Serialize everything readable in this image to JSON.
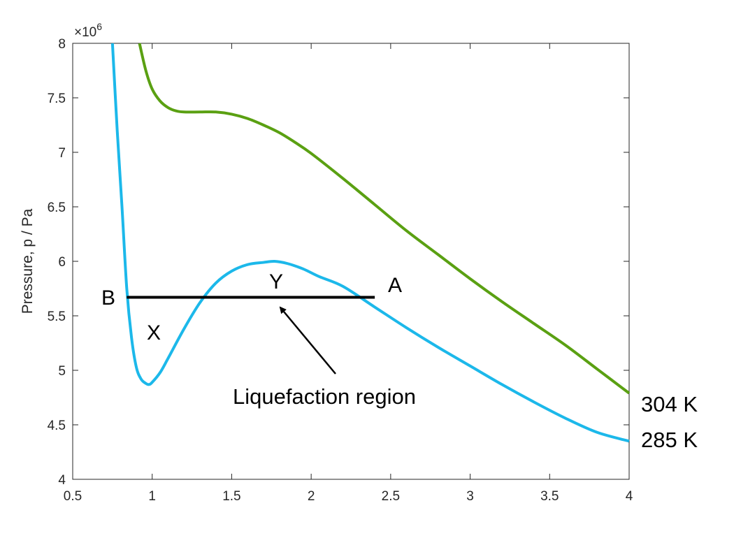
{
  "chart_data": {
    "type": "line",
    "ylabel": "Pressure, p / Pa",
    "y_multiplier": "×10",
    "y_multiplier_exponent": "6",
    "xlim": [
      0.5,
      4
    ],
    "ylim": [
      4,
      8
    ],
    "grid": false,
    "x_ticks": [
      0.5,
      1,
      1.5,
      2,
      2.5,
      3,
      3.5,
      4
    ],
    "x_tick_labels": [
      "0.5",
      "1",
      "1.5",
      "2",
      "2.5",
      "3",
      "3.5",
      "4"
    ],
    "y_ticks": [
      4,
      4.5,
      5,
      5.5,
      6,
      6.5,
      7,
      7.5,
      8
    ],
    "y_tick_labels": [
      "4",
      "4.5",
      "5",
      "5.5",
      "6",
      "6.5",
      "7",
      "7.5",
      "8"
    ],
    "series": [
      {
        "name": "304 K",
        "color": "#5aa012",
        "x": [
          0.92,
          0.96,
          1.0,
          1.05,
          1.1,
          1.15,
          1.2,
          1.3,
          1.4,
          1.5,
          1.6,
          1.7,
          1.8,
          1.9,
          2.0,
          2.2,
          2.4,
          2.6,
          2.8,
          3.0,
          3.2,
          3.4,
          3.6,
          3.8,
          4.0
        ],
        "y": [
          8.0,
          7.75,
          7.58,
          7.47,
          7.41,
          7.38,
          7.37,
          7.37,
          7.37,
          7.35,
          7.31,
          7.25,
          7.18,
          7.09,
          6.99,
          6.76,
          6.52,
          6.28,
          6.06,
          5.84,
          5.63,
          5.43,
          5.23,
          5.01,
          4.79
        ]
      },
      {
        "name": "285 K",
        "color": "#1cb8ea",
        "x": [
          0.75,
          0.78,
          0.81,
          0.84,
          0.87,
          0.9,
          0.93,
          0.96,
          0.98,
          1.0,
          1.05,
          1.1,
          1.2,
          1.3,
          1.4,
          1.5,
          1.6,
          1.7,
          1.77,
          1.85,
          1.95,
          2.05,
          2.2,
          2.4,
          2.6,
          2.8,
          3.0,
          3.2,
          3.4,
          3.6,
          3.8,
          4.0
        ],
        "y": [
          8.0,
          7.2,
          6.5,
          5.75,
          5.3,
          5.03,
          4.92,
          4.88,
          4.87,
          4.89,
          4.98,
          5.11,
          5.38,
          5.62,
          5.8,
          5.91,
          5.97,
          5.99,
          6.0,
          5.98,
          5.93,
          5.86,
          5.77,
          5.58,
          5.39,
          5.21,
          5.04,
          4.87,
          4.71,
          4.56,
          4.43,
          4.35
        ]
      }
    ],
    "tie_line": {
      "x": [
        0.84,
        2.4
      ],
      "y": [
        5.67,
        5.67
      ],
      "color": "#000000"
    },
    "labels": {
      "B": "B",
      "A": "A",
      "X": "X",
      "Y": "Y",
      "region": "Liquefaction region",
      "series_304": "304 K",
      "series_285": "285 K"
    }
  }
}
